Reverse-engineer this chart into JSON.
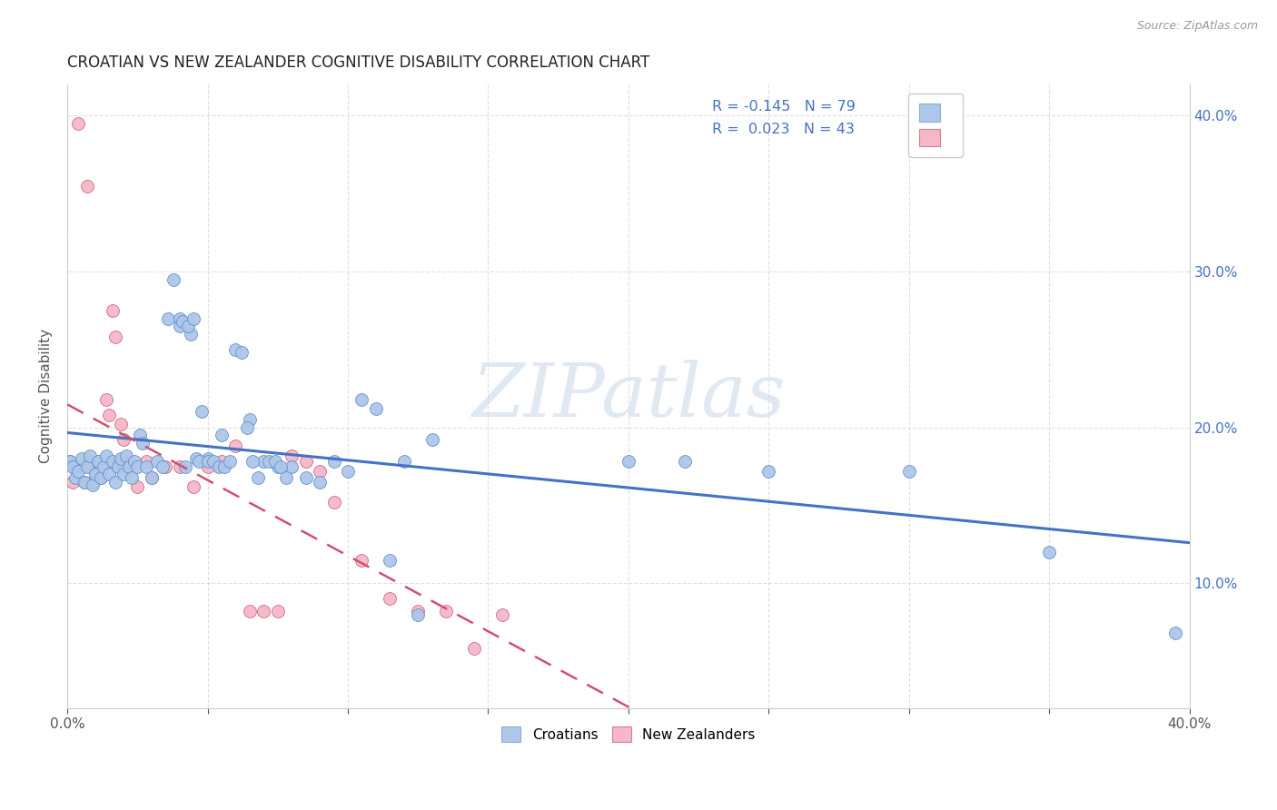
{
  "title": "CROATIAN VS NEW ZEALANDER COGNITIVE DISABILITY CORRELATION CHART",
  "source": "Source: ZipAtlas.com",
  "ylabel": "Cognitive Disability",
  "watermark": "ZIPatlas",
  "croatians": {
    "R": -0.145,
    "N": 79,
    "color": "#aec6e8",
    "edge_color": "#5b8fcc",
    "line_color": "#4472c4",
    "x": [
      0.001,
      0.002,
      0.003,
      0.004,
      0.005,
      0.006,
      0.007,
      0.008,
      0.009,
      0.01,
      0.011,
      0.012,
      0.013,
      0.014,
      0.015,
      0.016,
      0.017,
      0.018,
      0.019,
      0.02,
      0.021,
      0.022,
      0.023,
      0.024,
      0.025,
      0.026,
      0.027,
      0.028,
      0.03,
      0.032,
      0.034,
      0.036,
      0.038,
      0.04,
      0.042,
      0.044,
      0.046,
      0.048,
      0.05,
      0.055,
      0.06,
      0.065,
      0.07,
      0.075,
      0.08,
      0.085,
      0.09,
      0.095,
      0.1,
      0.105,
      0.11,
      0.115,
      0.12,
      0.125,
      0.13,
      0.04,
      0.041,
      0.043,
      0.045,
      0.047,
      0.05,
      0.052,
      0.054,
      0.056,
      0.058,
      0.062,
      0.064,
      0.066,
      0.068,
      0.072,
      0.074,
      0.076,
      0.078,
      0.2,
      0.22,
      0.25,
      0.3,
      0.35,
      0.395
    ],
    "y": [
      0.178,
      0.175,
      0.168,
      0.172,
      0.18,
      0.165,
      0.175,
      0.182,
      0.163,
      0.17,
      0.178,
      0.168,
      0.175,
      0.182,
      0.17,
      0.178,
      0.165,
      0.175,
      0.18,
      0.17,
      0.182,
      0.175,
      0.168,
      0.178,
      0.175,
      0.195,
      0.19,
      0.175,
      0.168,
      0.178,
      0.175,
      0.27,
      0.295,
      0.27,
      0.175,
      0.26,
      0.18,
      0.21,
      0.18,
      0.195,
      0.25,
      0.205,
      0.178,
      0.175,
      0.175,
      0.168,
      0.165,
      0.178,
      0.172,
      0.218,
      0.212,
      0.115,
      0.178,
      0.08,
      0.192,
      0.265,
      0.268,
      0.265,
      0.27,
      0.178,
      0.178,
      0.178,
      0.175,
      0.175,
      0.178,
      0.248,
      0.2,
      0.178,
      0.168,
      0.178,
      0.178,
      0.175,
      0.168,
      0.178,
      0.178,
      0.172,
      0.172,
      0.12,
      0.068
    ]
  },
  "new_zealanders": {
    "R": 0.023,
    "N": 43,
    "color": "#f5b8c8",
    "edge_color": "#d06080",
    "line_color": "#d05070",
    "x": [
      0.001,
      0.002,
      0.003,
      0.004,
      0.005,
      0.006,
      0.007,
      0.008,
      0.009,
      0.01,
      0.011,
      0.012,
      0.013,
      0.014,
      0.015,
      0.016,
      0.017,
      0.018,
      0.019,
      0.02,
      0.022,
      0.025,
      0.028,
      0.03,
      0.035,
      0.04,
      0.045,
      0.05,
      0.055,
      0.06,
      0.065,
      0.07,
      0.075,
      0.08,
      0.085,
      0.09,
      0.095,
      0.105,
      0.115,
      0.125,
      0.135,
      0.145,
      0.155
    ],
    "y": [
      0.178,
      0.165,
      0.175,
      0.395,
      0.175,
      0.165,
      0.355,
      0.178,
      0.165,
      0.172,
      0.178,
      0.168,
      0.175,
      0.218,
      0.208,
      0.275,
      0.258,
      0.178,
      0.202,
      0.192,
      0.178,
      0.162,
      0.178,
      0.168,
      0.175,
      0.175,
      0.162,
      0.175,
      0.178,
      0.188,
      0.082,
      0.082,
      0.082,
      0.182,
      0.178,
      0.172,
      0.152,
      0.115,
      0.09,
      0.082,
      0.082,
      0.058,
      0.08
    ]
  },
  "xlim": [
    0.0,
    0.4
  ],
  "ylim": [
    0.02,
    0.42
  ],
  "xticks": [
    0.0,
    0.05,
    0.1,
    0.15,
    0.2,
    0.25,
    0.3,
    0.35,
    0.4
  ],
  "yticks": [
    0.1,
    0.2,
    0.3,
    0.4
  ],
  "title_fontsize": 12,
  "label_color_blue": "#4472c4",
  "background_color": "#ffffff",
  "grid_color": "#d8d8d8"
}
